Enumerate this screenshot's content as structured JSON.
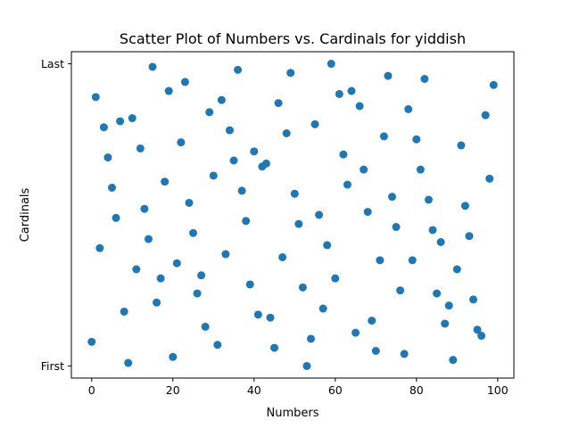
{
  "chart_data": {
    "type": "scatter",
    "title": "Scatter Plot of Numbers vs. Cardinals for yiddish",
    "xlabel": "Numbers",
    "ylabel": "Cardinals",
    "xlim": [
      -5,
      104
    ],
    "ylim": [
      -0.04,
      1.04
    ],
    "x_ticks": [
      0,
      20,
      40,
      60,
      80,
      100
    ],
    "y_ticks": [
      {
        "value": 0,
        "label": "First"
      },
      {
        "value": 1,
        "label": "Last"
      }
    ],
    "marker_color": "#1f77b4",
    "grid": false,
    "legend": "none",
    "x": [
      0,
      1,
      2,
      3,
      4,
      5,
      6,
      7,
      8,
      9,
      10,
      11,
      12,
      13,
      14,
      15,
      16,
      17,
      18,
      19,
      20,
      21,
      22,
      23,
      24,
      25,
      26,
      27,
      28,
      29,
      30,
      31,
      32,
      33,
      34,
      35,
      36,
      37,
      38,
      39,
      40,
      41,
      42,
      43,
      44,
      45,
      46,
      47,
      48,
      49,
      50,
      51,
      52,
      53,
      54,
      55,
      56,
      57,
      58,
      59,
      60,
      61,
      62,
      63,
      64,
      65,
      66,
      67,
      68,
      69,
      70,
      71,
      72,
      73,
      74,
      75,
      76,
      77,
      78,
      79,
      80,
      81,
      82,
      83,
      84,
      85,
      86,
      87,
      88,
      89,
      90,
      91,
      92,
      93,
      94,
      95,
      96,
      97,
      98,
      99
    ],
    "y": [
      0.08,
      0.89,
      0.39,
      0.79,
      0.69,
      0.59,
      0.49,
      0.81,
      0.18,
      0.01,
      0.82,
      0.32,
      0.72,
      0.52,
      0.42,
      0.99,
      0.21,
      0.29,
      0.61,
      0.91,
      0.03,
      0.34,
      0.74,
      0.94,
      0.54,
      0.44,
      0.24,
      0.3,
      0.13,
      0.84,
      0.63,
      0.07,
      0.88,
      0.37,
      0.78,
      0.68,
      0.98,
      0.58,
      0.48,
      0.27,
      0.71,
      0.17,
      0.66,
      0.67,
      0.16,
      0.06,
      0.87,
      0.36,
      0.77,
      0.97,
      0.57,
      0.47,
      0.26,
      0.0,
      0.09,
      0.8,
      0.5,
      0.19,
      0.4,
      1.0,
      0.29,
      0.9,
      0.7,
      0.6,
      0.91,
      0.11,
      0.86,
      0.65,
      0.51,
      0.15,
      0.05,
      0.35,
      0.76,
      0.96,
      0.56,
      0.46,
      0.25,
      0.04,
      0.85,
      0.35,
      0.75,
      0.65,
      0.95,
      0.55,
      0.45,
      0.24,
      0.41,
      0.14,
      0.2,
      0.02,
      0.32,
      0.73,
      0.53,
      0.43,
      0.22,
      0.12,
      0.1,
      0.83,
      0.62,
      0.93
    ]
  }
}
